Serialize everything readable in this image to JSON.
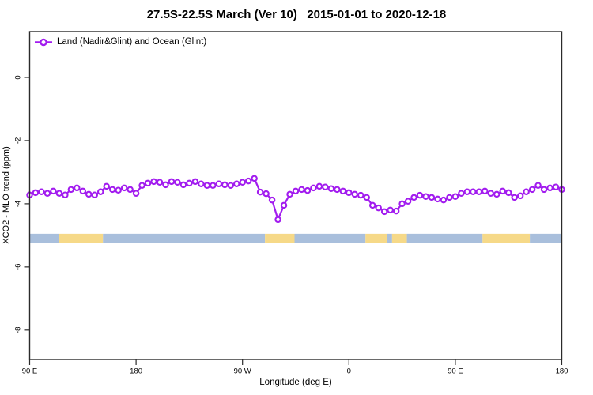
{
  "title": "27.5S-22.5S March (Ver 10)   2015-01-01 to 2020-12-18",
  "legend": {
    "label": "Land (Nadir&Glint) and Ocean (Glint)"
  },
  "axes": {
    "xlabel": "Longitude (deg E)",
    "ylabel": "XCO2 - MLO trend (ppm)"
  },
  "colors": {
    "series": "#A21CEF",
    "marker_fill": "#ffffff",
    "ocean_band": "#A9BFDC",
    "land_band": "#F6D988",
    "axis": "#2b2b2b",
    "text": "#000000"
  },
  "chart_data": {
    "type": "line",
    "title": "27.5S-22.5S March (Ver 10)   2015-01-01 to 2020-12-18",
    "xlabel": "Longitude (deg E)",
    "ylabel": "XCO2 - MLO trend (ppm)",
    "xlim": [
      90,
      540
    ],
    "ylim": [
      -8.93,
      1.45
    ],
    "grid": false,
    "legend_position": "top-left-inside",
    "x_ticks": {
      "positions": [
        90,
        180,
        270,
        360,
        450,
        540
      ],
      "labels": [
        "90 E",
        "180",
        "90 W",
        "0",
        "90 E",
        "180"
      ]
    },
    "y_ticks": {
      "positions": [
        0,
        -2,
        -4,
        -6,
        -8
      ],
      "labels": [
        "0",
        "-2",
        "-4",
        "-6",
        "-8"
      ]
    },
    "series": [
      {
        "name": "Land (Nadir&Glint) and Ocean (Glint)",
        "color": "#A21CEF",
        "marker": "open-circle",
        "x": [
          90,
          95,
          100,
          105,
          110,
          115,
          120,
          125,
          130,
          135,
          140,
          145,
          150,
          155,
          160,
          165,
          170,
          175,
          180,
          185,
          190,
          195,
          200,
          205,
          210,
          215,
          220,
          225,
          230,
          235,
          240,
          245,
          250,
          255,
          260,
          265,
          270,
          275,
          280,
          285,
          290,
          295,
          300,
          305,
          310,
          315,
          320,
          325,
          330,
          335,
          340,
          345,
          350,
          355,
          360,
          365,
          370,
          375,
          380,
          385,
          390,
          395,
          400,
          405,
          410,
          415,
          420,
          425,
          430,
          435,
          440,
          445,
          450,
          455,
          460,
          465,
          470,
          475,
          480,
          485,
          490,
          495,
          500,
          505,
          510,
          515,
          520,
          525,
          530,
          535,
          540
        ],
        "y": [
          -3.72,
          -3.65,
          -3.62,
          -3.67,
          -3.6,
          -3.67,
          -3.72,
          -3.55,
          -3.5,
          -3.6,
          -3.7,
          -3.72,
          -3.62,
          -3.45,
          -3.55,
          -3.57,
          -3.5,
          -3.55,
          -3.67,
          -3.42,
          -3.35,
          -3.3,
          -3.32,
          -3.4,
          -3.3,
          -3.32,
          -3.4,
          -3.35,
          -3.3,
          -3.37,
          -3.42,
          -3.42,
          -3.37,
          -3.4,
          -3.42,
          -3.37,
          -3.32,
          -3.28,
          -3.2,
          -3.63,
          -3.68,
          -3.88,
          -4.5,
          -4.05,
          -3.7,
          -3.6,
          -3.55,
          -3.58,
          -3.5,
          -3.45,
          -3.47,
          -3.52,
          -3.55,
          -3.6,
          -3.65,
          -3.7,
          -3.73,
          -3.8,
          -4.05,
          -4.13,
          -4.25,
          -4.2,
          -4.23,
          -4.0,
          -3.92,
          -3.8,
          -3.73,
          -3.77,
          -3.8,
          -3.85,
          -3.88,
          -3.8,
          -3.77,
          -3.67,
          -3.62,
          -3.62,
          -3.62,
          -3.6,
          -3.67,
          -3.7,
          -3.6,
          -3.65,
          -3.8,
          -3.75,
          -3.62,
          -3.55,
          -3.42,
          -3.55,
          -3.5,
          -3.47,
          -3.55
        ]
      }
    ],
    "surface_band": {
      "description": "land/ocean surface-type strip along longitude",
      "y_range": [
        -5.25,
        -4.95
      ],
      "colors": {
        "ocean": "#A9BFDC",
        "land": "#F6D988"
      },
      "segments": [
        {
          "type": "ocean",
          "x": [
            90,
            115
          ]
        },
        {
          "type": "land",
          "x": [
            115,
            152
          ]
        },
        {
          "type": "ocean",
          "x": [
            152,
            289
          ]
        },
        {
          "type": "land",
          "x": [
            289,
            314
          ]
        },
        {
          "type": "ocean",
          "x": [
            314,
            374
          ]
        },
        {
          "type": "land",
          "x": [
            374,
            392.5
          ]
        },
        {
          "type": "ocean",
          "x": [
            392.5,
            396.5
          ]
        },
        {
          "type": "land",
          "x": [
            396.5,
            409
          ]
        },
        {
          "type": "ocean",
          "x": [
            409,
            473
          ]
        },
        {
          "type": "land",
          "x": [
            473,
            513
          ]
        },
        {
          "type": "ocean",
          "x": [
            513,
            540
          ]
        }
      ]
    }
  }
}
